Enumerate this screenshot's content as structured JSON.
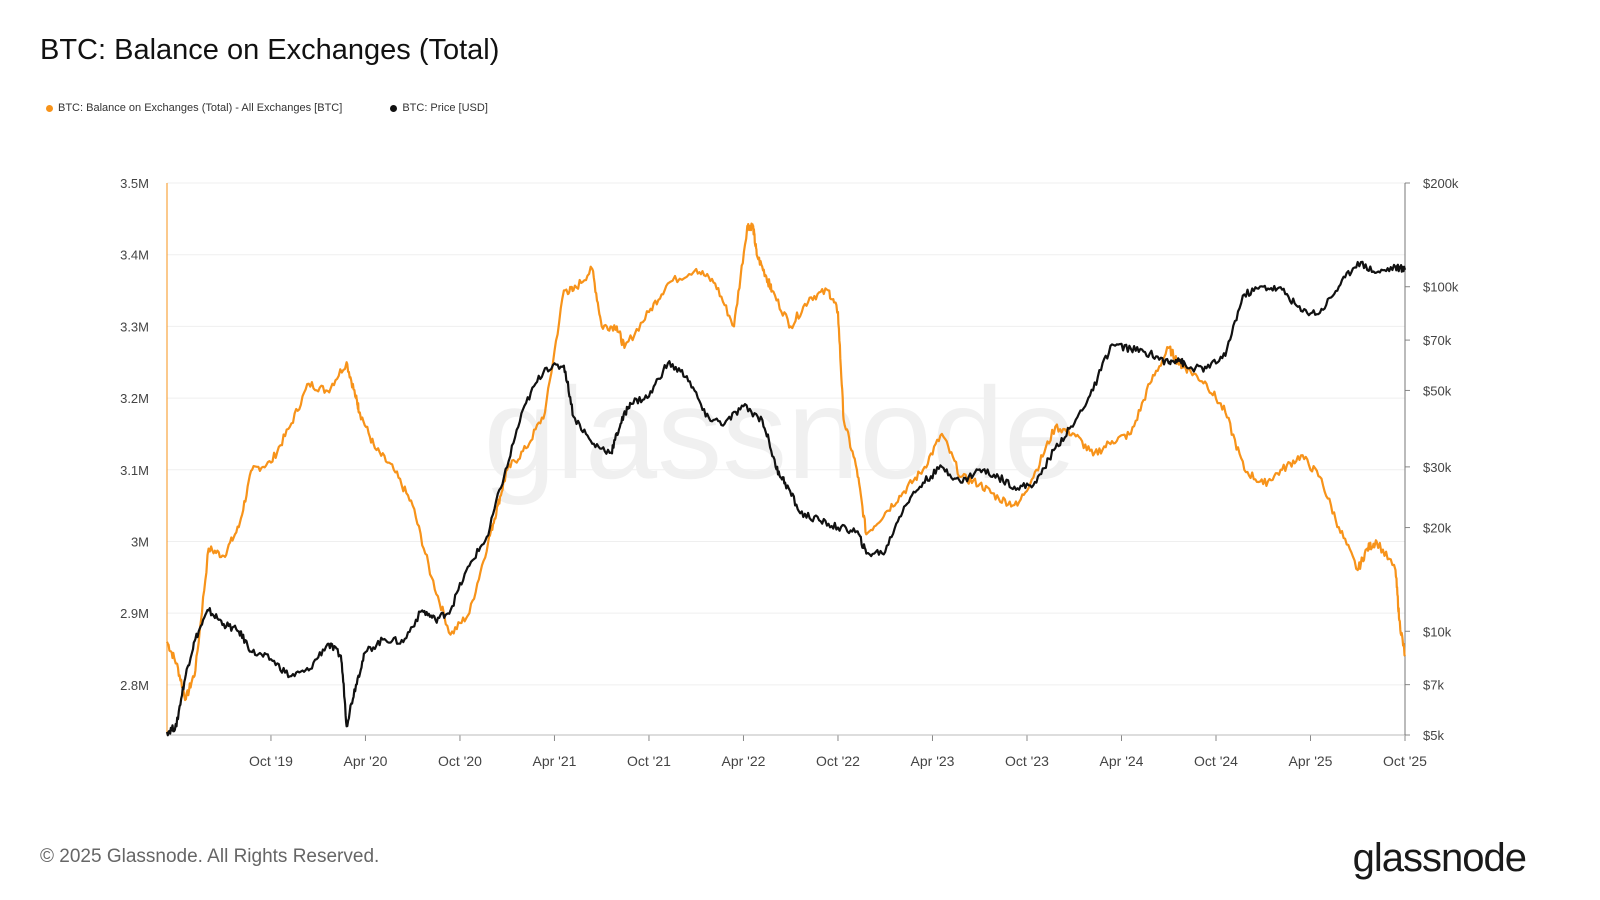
{
  "title": "BTC: Balance on Exchanges (Total)",
  "legend": [
    {
      "label": "BTC: Balance on Exchanges (Total) - All Exchanges [BTC]",
      "color": "#f7931a"
    },
    {
      "label": "BTC: Price [USD]",
      "color": "#111111"
    }
  ],
  "footer": "© 2025 Glassnode. All Rights Reserved.",
  "logo": "glassnode",
  "watermark": "glassnode",
  "chart_data": {
    "type": "line",
    "title": "BTC: Balance on Exchanges (Total)",
    "grid": true,
    "legend_position": "top-left",
    "x_ticks": [
      "Oct '19",
      "Apr '20",
      "Oct '20",
      "Apr '21",
      "Oct '21",
      "Apr '22",
      "Oct '22",
      "Apr '23",
      "Oct '23",
      "Apr '24",
      "Oct '24",
      "Apr '25",
      "Oct '25"
    ],
    "xlim": [
      2019.2,
      2025.75
    ],
    "y_left": {
      "ticks": [
        "3.5M",
        "3.4M",
        "3.3M",
        "3.2M",
        "3.1M",
        "3M",
        "2.9M",
        "2.8M"
      ],
      "tick_values": [
        3.5,
        3.4,
        3.3,
        3.2,
        3.1,
        3.0,
        2.9,
        2.8
      ],
      "range": [
        2.73,
        3.5
      ],
      "unit": "M BTC"
    },
    "y_right": {
      "ticks": [
        "$200k",
        "$100k",
        "$70k",
        "$50k",
        "$30k",
        "$20k",
        "$10k",
        "$7k",
        "$5k"
      ],
      "tick_values": [
        200,
        100,
        70,
        50,
        30,
        20,
        10,
        7,
        5
      ],
      "range": [
        5,
        200
      ],
      "scale": "log",
      "unit": "k USD"
    },
    "series": [
      {
        "name": "BTC: Balance on Exchanges (Total) - All Exchanges [BTC]",
        "axis": "left",
        "color": "#f7931a",
        "x": [
          2019.2,
          2019.25,
          2019.3,
          2019.35,
          2019.42,
          2019.5,
          2019.58,
          2019.65,
          2019.75,
          2019.85,
          2019.95,
          2020.05,
          2020.15,
          2020.2,
          2020.22,
          2020.3,
          2020.4,
          2020.5,
          2020.6,
          2020.7,
          2020.8,
          2020.9,
          2020.95,
          2021.0,
          2021.1,
          2021.2,
          2021.3,
          2021.35,
          2021.45,
          2021.5,
          2021.58,
          2021.62,
          2021.75,
          2021.85,
          2022.0,
          2022.1,
          2022.2,
          2022.27,
          2022.3,
          2022.32,
          2022.37,
          2022.4,
          2022.5,
          2022.6,
          2022.7,
          2022.75,
          2022.78,
          2022.85,
          2022.9,
          2023.0,
          2023.1,
          2023.2,
          2023.3,
          2023.4,
          2023.5,
          2023.6,
          2023.7,
          2023.8,
          2023.9,
          2024.0,
          2024.1,
          2024.2,
          2024.3,
          2024.4,
          2024.5,
          2024.55,
          2024.6,
          2024.7,
          2024.8,
          2024.9,
          2025.0,
          2025.1,
          2025.2,
          2025.3,
          2025.4,
          2025.5,
          2025.55,
          2025.6,
          2025.7,
          2025.72,
          2025.75
        ],
        "y": [
          2.86,
          2.83,
          2.78,
          2.82,
          2.99,
          2.98,
          3.02,
          3.1,
          3.11,
          3.16,
          3.22,
          3.21,
          3.25,
          3.2,
          3.18,
          3.13,
          3.1,
          3.05,
          2.95,
          2.87,
          2.9,
          3.0,
          3.05,
          3.1,
          3.13,
          3.18,
          3.35,
          3.35,
          3.38,
          3.3,
          3.3,
          3.27,
          3.32,
          3.36,
          3.38,
          3.36,
          3.3,
          3.44,
          3.44,
          3.4,
          3.37,
          3.35,
          3.3,
          3.34,
          3.35,
          3.32,
          3.17,
          3.1,
          3.01,
          3.04,
          3.07,
          3.1,
          3.15,
          3.09,
          3.08,
          3.06,
          3.05,
          3.1,
          3.16,
          3.15,
          3.12,
          3.14,
          3.15,
          3.22,
          3.27,
          3.25,
          3.24,
          3.22,
          3.18,
          3.1,
          3.08,
          3.1,
          3.12,
          3.09,
          3.02,
          2.96,
          2.99,
          3.0,
          2.96,
          2.89,
          2.84
        ]
      },
      {
        "name": "BTC: Price [USD]",
        "axis": "right",
        "color": "#111111",
        "x": [
          2019.2,
          2019.25,
          2019.3,
          2019.35,
          2019.42,
          2019.5,
          2019.58,
          2019.65,
          2019.75,
          2019.85,
          2019.95,
          2020.05,
          2020.12,
          2020.15,
          2020.2,
          2020.25,
          2020.35,
          2020.45,
          2020.55,
          2020.62,
          2020.7,
          2020.8,
          2020.9,
          2021.0,
          2021.1,
          2021.2,
          2021.3,
          2021.35,
          2021.45,
          2021.55,
          2021.6,
          2021.65,
          2021.75,
          2021.85,
          2021.95,
          2022.05,
          2022.15,
          2022.25,
          2022.35,
          2022.42,
          2022.47,
          2022.55,
          2022.65,
          2022.75,
          2022.85,
          2022.9,
          2023.0,
          2023.1,
          2023.2,
          2023.3,
          2023.4,
          2023.5,
          2023.6,
          2023.7,
          2023.8,
          2023.9,
          2024.0,
          2024.1,
          2024.2,
          2024.3,
          2024.4,
          2024.5,
          2024.55,
          2024.6,
          2024.7,
          2024.8,
          2024.9,
          2025.0,
          2025.1,
          2025.2,
          2025.3,
          2025.4,
          2025.5,
          2025.6,
          2025.7,
          2025.75
        ],
        "y": [
          5.1,
          5.3,
          7.5,
          9.5,
          11.5,
          10.5,
          10.0,
          8.7,
          8.3,
          7.4,
          7.7,
          9.2,
          8.5,
          5.3,
          7.0,
          8.7,
          9.5,
          9.3,
          11.5,
          10.8,
          11.5,
          15.5,
          19,
          30,
          46,
          58,
          59,
          42,
          35,
          33,
          40,
          46,
          48,
          60,
          55,
          42,
          40,
          45,
          41,
          30,
          27,
          22,
          21,
          20,
          19.5,
          16.8,
          17,
          23,
          27,
          30,
          27,
          29.5,
          28,
          26,
          27,
          34,
          40,
          50,
          68,
          66,
          64,
          60,
          62,
          58,
          58,
          63,
          95,
          100,
          98,
          85,
          84,
          100,
          118,
          110,
          114,
          112
        ]
      }
    ]
  }
}
